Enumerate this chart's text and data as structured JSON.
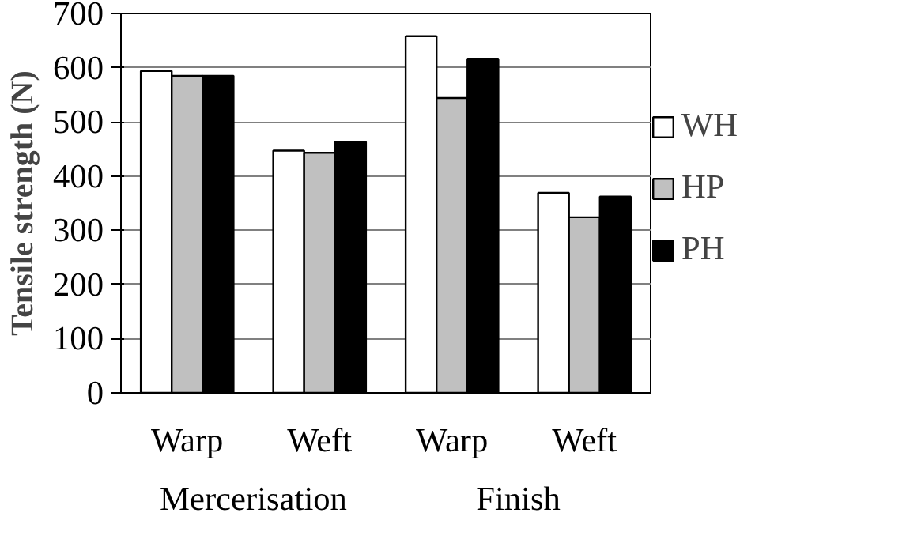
{
  "chart_data": {
    "type": "bar",
    "ylabel": "Tensile strength (N)",
    "categories": [
      "Warp",
      "Weft",
      "Warp",
      "Weft"
    ],
    "series": [
      {
        "name": "WH",
        "color": "#ffffff",
        "values": [
          594,
          447,
          658,
          369
        ]
      },
      {
        "name": "HP",
        "color": "#c0c0c0",
        "values": [
          585,
          443,
          544,
          324
        ]
      },
      {
        "name": "PH",
        "color": "#000000",
        "values": [
          585,
          463,
          615,
          362
        ]
      }
    ],
    "annotations": [
      "Mercerisation",
      "Finish"
    ],
    "ylim": [
      0,
      700
    ],
    "yticks": [
      0,
      100,
      200,
      300,
      400,
      500,
      600,
      700
    ],
    "grid": "y",
    "legend": "right"
  }
}
